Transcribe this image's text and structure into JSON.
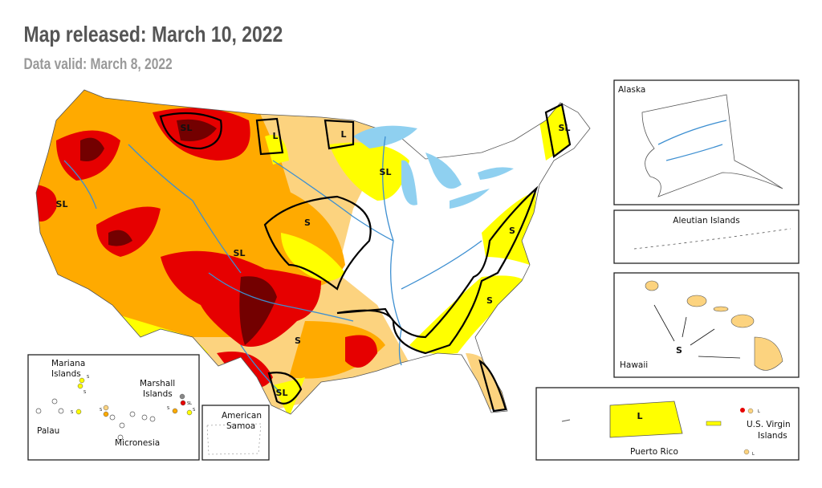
{
  "header": {
    "title": "Map released: March 10, 2022",
    "subtitle": "Data valid: March 8, 2022"
  },
  "map": {
    "labels": [
      "SL",
      "L",
      "L",
      "SL",
      "SL",
      "SL",
      "S",
      "SL",
      "S",
      "S",
      "S",
      "SL"
    ]
  },
  "insets": {
    "alaska": {
      "name": "Alaska"
    },
    "aleutian": {
      "name": "Aleutian Islands"
    },
    "hawaii": {
      "name": "Hawaii",
      "label": "S"
    },
    "puerto_rico": {
      "name": "Puerto Rico",
      "label": "L"
    },
    "virgin_islands": {
      "name": [
        "U.S. Virgin",
        "Islands"
      ],
      "labels": [
        "L",
        "L"
      ]
    },
    "samoa": {
      "name": [
        "American",
        "Samoa"
      ]
    },
    "pacific": {
      "mariana": [
        "Mariana",
        "Islands"
      ],
      "marshall": [
        "Marshall",
        "Islands"
      ],
      "palau": "Palau",
      "micronesia": "Micronesia",
      "labels": [
        "S",
        "S",
        "S",
        "S",
        "S",
        "SL",
        "S"
      ]
    }
  }
}
